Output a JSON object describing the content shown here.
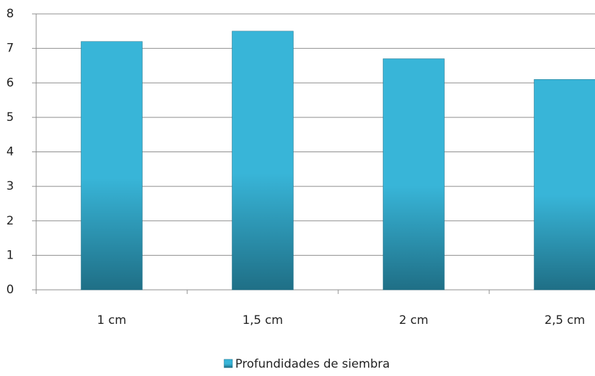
{
  "chart_data": {
    "type": "bar",
    "categories": [
      "1 cm",
      "1,5 cm",
      "2 cm",
      "2,5 cm"
    ],
    "series": [
      {
        "name": "Profundidades de siembra",
        "color": "#38b5d8",
        "values": [
          7.2,
          7.5,
          6.7,
          6.1
        ]
      }
    ],
    "ylim": [
      0,
      8
    ],
    "yticks": [
      0,
      1,
      2,
      3,
      4,
      5,
      6,
      7,
      8
    ],
    "grid": true,
    "legend": "bottom"
  }
}
